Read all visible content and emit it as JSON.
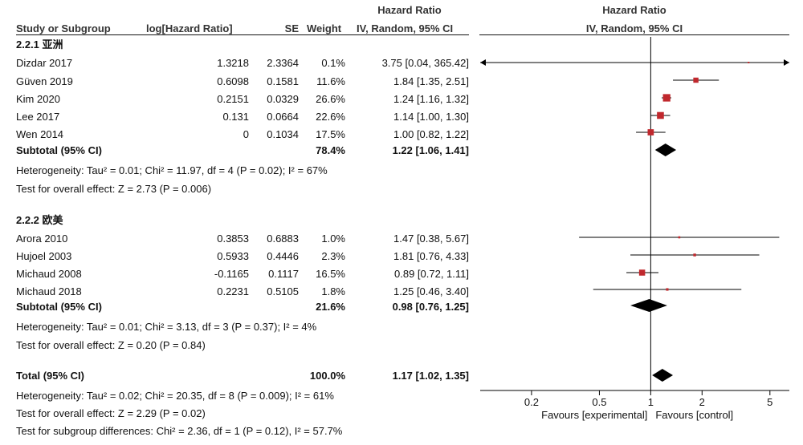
{
  "header": {
    "hr_group_left": "Hazard Ratio",
    "hr_group_right": "Hazard Ratio",
    "col_study": "Study or Subgroup",
    "col_loghr": "log[Hazard Ratio]",
    "col_se": "SE",
    "col_weight": "Weight",
    "col_ci": "IV, Random, 95% CI",
    "plot_ci": "IV, Random, 95% CI"
  },
  "groups": [
    {
      "title": "2.2.1 亚洲",
      "studies": [
        {
          "name": "Dizdar 2017",
          "loghr": "1.3218",
          "se": "2.3364",
          "weight": "0.1%",
          "ci": "3.75 [0.04, 365.42]"
        },
        {
          "name": "Güven 2019",
          "loghr": "0.6098",
          "se": "0.1581",
          "weight": "11.6%",
          "ci": "1.84 [1.35, 2.51]"
        },
        {
          "name": "Kim 2020",
          "loghr": "0.2151",
          "se": "0.0329",
          "weight": "26.6%",
          "ci": "1.24 [1.16, 1.32]"
        },
        {
          "name": "Lee 2017",
          "loghr": "0.131",
          "se": "0.0664",
          "weight": "22.6%",
          "ci": "1.14 [1.00, 1.30]"
        },
        {
          "name": "Wen 2014",
          "loghr": "0",
          "se": "0.1034",
          "weight": "17.5%",
          "ci": "1.00 [0.82, 1.22]"
        }
      ],
      "subtotal": {
        "label": "Subtotal (95% CI)",
        "weight": "78.4%",
        "ci": "1.22 [1.06, 1.41]"
      },
      "heterogeneity": "Heterogeneity: Tau² = 0.01; Chi² = 11.97, df = 4 (P = 0.02); I² = 67%",
      "overall": "Test for overall effect: Z = 2.73 (P = 0.006)"
    },
    {
      "title": "2.2.2 欧美",
      "studies": [
        {
          "name": "Arora 2010",
          "loghr": "0.3853",
          "se": "0.6883",
          "weight": "1.0%",
          "ci": "1.47 [0.38, 5.67]"
        },
        {
          "name": "Hujoel 2003",
          "loghr": "0.5933",
          "se": "0.4446",
          "weight": "2.3%",
          "ci": "1.81 [0.76, 4.33]"
        },
        {
          "name": "Michaud 2008",
          "loghr": "-0.1165",
          "se": "0.1117",
          "weight": "16.5%",
          "ci": "0.89 [0.72, 1.11]"
        },
        {
          "name": "Michaud 2018",
          "loghr": "0.2231",
          "se": "0.5105",
          "weight": "1.8%",
          "ci": "1.25 [0.46, 3.40]"
        }
      ],
      "subtotal": {
        "label": "Subtotal (95% CI)",
        "weight": "21.6%",
        "ci": "0.98 [0.76, 1.25]"
      },
      "heterogeneity": "Heterogeneity: Tau² = 0.01; Chi² = 3.13, df = 3 (P = 0.37); I² = 4%",
      "overall": "Test for overall effect: Z = 0.20 (P = 0.84)"
    }
  ],
  "total": {
    "label": "Total (95% CI)",
    "weight": "100.0%",
    "ci": "1.17 [1.02, 1.35]",
    "heterogeneity": "Heterogeneity: Tau² = 0.02; Chi² = 20.35, df = 8 (P = 0.009); I² = 61%",
    "overall": "Test for overall effect: Z = 2.29 (P = 0.02)",
    "subgroup": "Test for subgroup differences: Chi² = 2.36, df = 1 (P = 0.12), I² = 57.7%"
  },
  "colors": {
    "square": "#c0282d",
    "line": "#000000",
    "diamond": "#000000"
  },
  "chart_data": {
    "type": "scatter",
    "scale": "log",
    "xlim": [
      0.1,
      6.5
    ],
    "xticks": [
      0.2,
      0.5,
      1,
      2,
      5
    ],
    "tick_labels": [
      "0.2",
      "0.5",
      "1",
      "2",
      "5"
    ],
    "xlabel_left": "Favours [experimental]",
    "xlabel_right": "Favours [control]",
    "studies": [
      {
        "name": "Dizdar 2017",
        "hr": 3.75,
        "lo": 0.04,
        "hi": 365.42,
        "weight": 0.1
      },
      {
        "name": "Güven 2019",
        "hr": 1.84,
        "lo": 1.35,
        "hi": 2.51,
        "weight": 11.6
      },
      {
        "name": "Kim 2020",
        "hr": 1.24,
        "lo": 1.16,
        "hi": 1.32,
        "weight": 26.6
      },
      {
        "name": "Lee 2017",
        "hr": 1.14,
        "lo": 1.0,
        "hi": 1.3,
        "weight": 22.6
      },
      {
        "name": "Wen 2014",
        "hr": 1.0,
        "lo": 0.82,
        "hi": 1.22,
        "weight": 17.5
      },
      {
        "name": "Arora 2010",
        "hr": 1.47,
        "lo": 0.38,
        "hi": 5.67,
        "weight": 1.0
      },
      {
        "name": "Hujoel 2003",
        "hr": 1.81,
        "lo": 0.76,
        "hi": 4.33,
        "weight": 2.3
      },
      {
        "name": "Michaud 2008",
        "hr": 0.89,
        "lo": 0.72,
        "hi": 1.11,
        "weight": 16.5
      },
      {
        "name": "Michaud 2018",
        "hr": 1.25,
        "lo": 0.46,
        "hi": 3.4,
        "weight": 1.8
      }
    ],
    "summaries": [
      {
        "name": "Subtotal 2.2.1",
        "hr": 1.22,
        "lo": 1.06,
        "hi": 1.41
      },
      {
        "name": "Subtotal 2.2.2",
        "hr": 0.98,
        "lo": 0.76,
        "hi": 1.25
      },
      {
        "name": "Total",
        "hr": 1.17,
        "lo": 1.02,
        "hi": 1.35
      }
    ]
  }
}
